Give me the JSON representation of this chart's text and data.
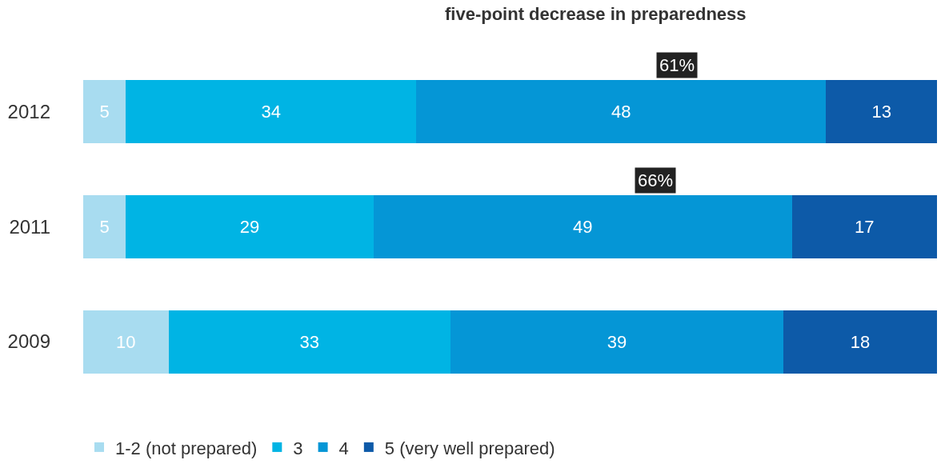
{
  "chart_data": {
    "type": "bar",
    "orientation": "horizontal",
    "stacked": true,
    "categories": [
      "2012",
      "2011",
      "2009"
    ],
    "series": [
      {
        "name": "1-2 (not prepared)",
        "color": "#a8dcf0",
        "values": [
          5,
          5,
          10
        ]
      },
      {
        "name": "3",
        "color": "#00b4e4",
        "values": [
          34,
          29,
          33
        ]
      },
      {
        "name": "4",
        "color": "#0596d6",
        "values": [
          48,
          49,
          39
        ]
      },
      {
        "name": "5 (very well prepared)",
        "color": "#0d5aa8",
        "values": [
          13,
          17,
          18
        ]
      }
    ],
    "data_labels": true,
    "legend": "bottom left",
    "tick_labels": "y",
    "annotations": [
      "five-point decrease in preparedness",
      "61%",
      "66%"
    ]
  }
}
